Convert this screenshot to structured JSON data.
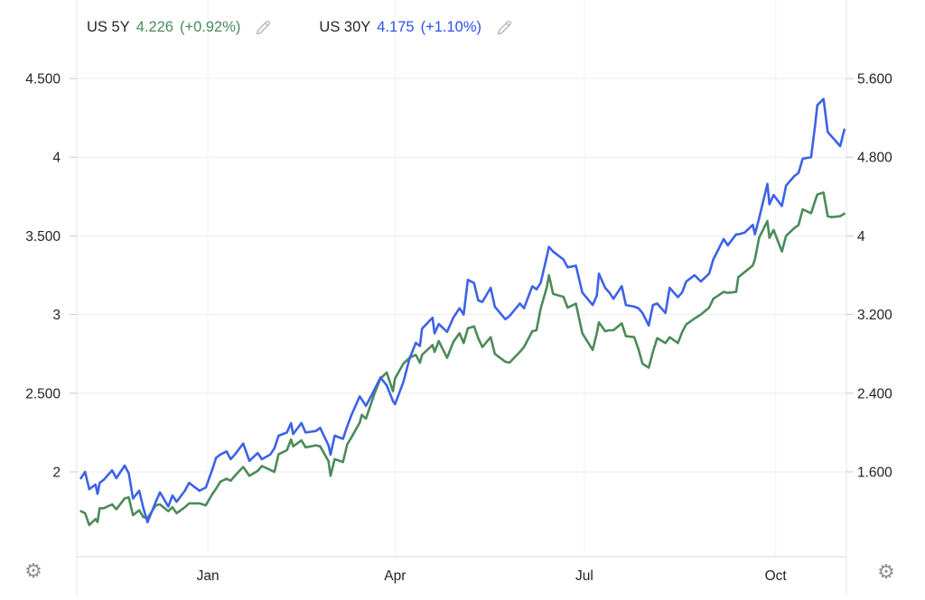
{
  "legend": [
    {
      "name": "US 5Y",
      "value": "4.226",
      "change": "(+0.92%)",
      "color": "#4A8A5F"
    },
    {
      "name": "US 30Y",
      "value": "4.175",
      "change": "(+1.10%)",
      "color": "#2D50EE"
    }
  ],
  "icons": {
    "settings_glyph": "⚙",
    "edit_icon": "pencil",
    "settings_icon": "gear"
  },
  "axis_text_color": "#1f2124",
  "chart_data": {
    "type": "line",
    "x_range": [
      "2021-10-30",
      "2022-11-04"
    ],
    "x_ticks": [
      {
        "label": "Jan",
        "date": "2022-01-01"
      },
      {
        "label": "Apr",
        "date": "2022-04-01"
      },
      {
        "label": "Jul",
        "date": "2022-07-01"
      },
      {
        "label": "Oct",
        "date": "2022-10-01"
      }
    ],
    "left_axis": {
      "series": "US 30Y",
      "min": 2.0,
      "max": 4.5,
      "ticks": [
        {
          "label": "4.500",
          "value": 4.5
        },
        {
          "label": "4",
          "value": 4.0
        },
        {
          "label": "3.500",
          "value": 3.5
        },
        {
          "label": "3",
          "value": 3.0
        },
        {
          "label": "2.500",
          "value": 2.5
        },
        {
          "label": "2",
          "value": 2.0
        }
      ]
    },
    "right_axis": {
      "series": "US 5Y",
      "min": 1.6,
      "max": 5.6,
      "ticks": [
        {
          "label": "5.600",
          "value": 5.6
        },
        {
          "label": "4.800",
          "value": 4.8
        },
        {
          "label": "4",
          "value": 4.0
        },
        {
          "label": "3.200",
          "value": 3.2
        },
        {
          "label": "2.400",
          "value": 2.4
        },
        {
          "label": "1.600",
          "value": 1.6
        }
      ]
    },
    "series": [
      {
        "name": "US 5Y",
        "axis": "right",
        "color": "#4C8A5A",
        "col": 2
      },
      {
        "name": "US 30Y",
        "axis": "left",
        "color": "#3D62E6",
        "col": 1
      }
    ],
    "columns": [
      "date",
      "US 30Y",
      "US 5Y"
    ],
    "points": [
      [
        "2021-11-01",
        1.96,
        1.2
      ],
      [
        "2021-11-03",
        2.0,
        1.18
      ],
      [
        "2021-11-05",
        1.89,
        1.06
      ],
      [
        "2021-11-08",
        1.92,
        1.12
      ],
      [
        "2021-11-09",
        1.86,
        1.09
      ],
      [
        "2021-11-10",
        1.93,
        1.23
      ],
      [
        "2021-11-12",
        1.95,
        1.23
      ],
      [
        "2021-11-16",
        2.01,
        1.27
      ],
      [
        "2021-11-18",
        1.96,
        1.22
      ],
      [
        "2021-11-22",
        2.04,
        1.33
      ],
      [
        "2021-11-24",
        1.99,
        1.34
      ],
      [
        "2021-11-26",
        1.83,
        1.16
      ],
      [
        "2021-11-29",
        1.88,
        1.21
      ],
      [
        "2021-12-01",
        1.77,
        1.14
      ],
      [
        "2021-12-03",
        1.68,
        1.13
      ],
      [
        "2021-12-07",
        1.81,
        1.26
      ],
      [
        "2021-12-09",
        1.87,
        1.27
      ],
      [
        "2021-12-13",
        1.78,
        1.2
      ],
      [
        "2021-12-15",
        1.85,
        1.24
      ],
      [
        "2021-12-17",
        1.81,
        1.18
      ],
      [
        "2021-12-21",
        1.88,
        1.24
      ],
      [
        "2021-12-23",
        1.93,
        1.28
      ],
      [
        "2021-12-28",
        1.88,
        1.28
      ],
      [
        "2021-12-31",
        1.9,
        1.26
      ],
      [
        "2022-01-03",
        2.01,
        1.37
      ],
      [
        "2022-01-05",
        2.09,
        1.43
      ],
      [
        "2022-01-07",
        2.11,
        1.5
      ],
      [
        "2022-01-10",
        2.13,
        1.53
      ],
      [
        "2022-01-12",
        2.08,
        1.51
      ],
      [
        "2022-01-14",
        2.11,
        1.56
      ],
      [
        "2022-01-18",
        2.18,
        1.65
      ],
      [
        "2022-01-21",
        2.07,
        1.56
      ],
      [
        "2022-01-25",
        2.12,
        1.61
      ],
      [
        "2022-01-27",
        2.08,
        1.66
      ],
      [
        "2022-01-31",
        2.11,
        1.62
      ],
      [
        "2022-02-02",
        2.15,
        1.6
      ],
      [
        "2022-02-04",
        2.23,
        1.78
      ],
      [
        "2022-02-08",
        2.25,
        1.82
      ],
      [
        "2022-02-10",
        2.31,
        1.93
      ],
      [
        "2022-02-11",
        2.24,
        1.86
      ],
      [
        "2022-02-15",
        2.31,
        1.92
      ],
      [
        "2022-02-17",
        2.25,
        1.85
      ],
      [
        "2022-02-22",
        2.26,
        1.87
      ],
      [
        "2022-02-24",
        2.28,
        1.86
      ],
      [
        "2022-02-28",
        2.17,
        1.71
      ],
      [
        "2022-03-01",
        2.11,
        1.56
      ],
      [
        "2022-03-03",
        2.23,
        1.73
      ],
      [
        "2022-03-07",
        2.21,
        1.7
      ],
      [
        "2022-03-09",
        2.29,
        1.88
      ],
      [
        "2022-03-11",
        2.36,
        1.95
      ],
      [
        "2022-03-15",
        2.48,
        2.1
      ],
      [
        "2022-03-16",
        2.46,
        2.18
      ],
      [
        "2022-03-18",
        2.42,
        2.14
      ],
      [
        "2022-03-22",
        2.52,
        2.39
      ],
      [
        "2022-03-25",
        2.6,
        2.55
      ],
      [
        "2022-03-28",
        2.55,
        2.61
      ],
      [
        "2022-03-31",
        2.45,
        2.42
      ],
      [
        "2022-04-01",
        2.43,
        2.55
      ],
      [
        "2022-04-05",
        2.57,
        2.7
      ],
      [
        "2022-04-08",
        2.72,
        2.76
      ],
      [
        "2022-04-11",
        2.82,
        2.79
      ],
      [
        "2022-04-13",
        2.8,
        2.71
      ],
      [
        "2022-04-14",
        2.91,
        2.79
      ],
      [
        "2022-04-19",
        2.98,
        2.89
      ],
      [
        "2022-04-20",
        2.88,
        2.82
      ],
      [
        "2022-04-22",
        2.94,
        2.93
      ],
      [
        "2022-04-26",
        2.89,
        2.76
      ],
      [
        "2022-04-29",
        2.98,
        2.92
      ],
      [
        "2022-05-02",
        3.04,
        3.01
      ],
      [
        "2022-05-04",
        3.0,
        2.91
      ],
      [
        "2022-05-06",
        3.22,
        3.06
      ],
      [
        "2022-05-09",
        3.2,
        3.08
      ],
      [
        "2022-05-11",
        3.09,
        2.96
      ],
      [
        "2022-05-13",
        3.08,
        2.87
      ],
      [
        "2022-05-17",
        3.17,
        2.97
      ],
      [
        "2022-05-19",
        3.05,
        2.8
      ],
      [
        "2022-05-24",
        2.97,
        2.72
      ],
      [
        "2022-05-26",
        2.99,
        2.71
      ],
      [
        "2022-05-31",
        3.07,
        2.82
      ],
      [
        "2022-06-02",
        3.04,
        2.87
      ],
      [
        "2022-06-06",
        3.18,
        3.03
      ],
      [
        "2022-06-08",
        3.16,
        3.04
      ],
      [
        "2022-06-10",
        3.2,
        3.26
      ],
      [
        "2022-06-13",
        3.37,
        3.48
      ],
      [
        "2022-06-14",
        3.43,
        3.6
      ],
      [
        "2022-06-16",
        3.4,
        3.41
      ],
      [
        "2022-06-21",
        3.35,
        3.38
      ],
      [
        "2022-06-23",
        3.3,
        3.27
      ],
      [
        "2022-06-27",
        3.31,
        3.31
      ],
      [
        "2022-06-30",
        3.14,
        3.01
      ],
      [
        "2022-07-05",
        3.06,
        2.84
      ],
      [
        "2022-07-07",
        3.12,
        3.01
      ],
      [
        "2022-07-08",
        3.26,
        3.12
      ],
      [
        "2022-07-11",
        3.17,
        3.03
      ],
      [
        "2022-07-13",
        3.14,
        3.04
      ],
      [
        "2022-07-15",
        3.1,
        3.04
      ],
      [
        "2022-07-19",
        3.18,
        3.11
      ],
      [
        "2022-07-21",
        3.06,
        2.98
      ],
      [
        "2022-07-25",
        3.05,
        2.97
      ],
      [
        "2022-07-27",
        3.04,
        2.85
      ],
      [
        "2022-07-29",
        3.01,
        2.7
      ],
      [
        "2022-08-01",
        2.93,
        2.66
      ],
      [
        "2022-08-03",
        3.06,
        2.82
      ],
      [
        "2022-08-05",
        3.07,
        2.96
      ],
      [
        "2022-08-09",
        3.01,
        2.91
      ],
      [
        "2022-08-11",
        3.17,
        2.97
      ],
      [
        "2022-08-15",
        3.11,
        2.91
      ],
      [
        "2022-08-17",
        3.14,
        3.02
      ],
      [
        "2022-08-19",
        3.21,
        3.1
      ],
      [
        "2022-08-23",
        3.25,
        3.16
      ],
      [
        "2022-08-26",
        3.21,
        3.2
      ],
      [
        "2022-08-30",
        3.26,
        3.27
      ],
      [
        "2022-09-01",
        3.35,
        3.36
      ],
      [
        "2022-09-06",
        3.48,
        3.43
      ],
      [
        "2022-09-08",
        3.44,
        3.42
      ],
      [
        "2022-09-12",
        3.51,
        3.43
      ],
      [
        "2022-09-13",
        3.51,
        3.58
      ],
      [
        "2022-09-16",
        3.52,
        3.63
      ],
      [
        "2022-09-20",
        3.57,
        3.7
      ],
      [
        "2022-09-21",
        3.51,
        3.76
      ],
      [
        "2022-09-23",
        3.61,
        3.98
      ],
      [
        "2022-09-27",
        3.83,
        4.15
      ],
      [
        "2022-09-28",
        3.7,
        3.98
      ],
      [
        "2022-09-30",
        3.76,
        4.06
      ],
      [
        "2022-10-04",
        3.69,
        3.84
      ],
      [
        "2022-10-06",
        3.82,
        4.0
      ],
      [
        "2022-10-10",
        3.88,
        4.08
      ],
      [
        "2022-10-12",
        3.9,
        4.11
      ],
      [
        "2022-10-14",
        3.99,
        4.27
      ],
      [
        "2022-10-18",
        4.0,
        4.23
      ],
      [
        "2022-10-20",
        4.21,
        4.36
      ],
      [
        "2022-10-21",
        4.33,
        4.42
      ],
      [
        "2022-10-24",
        4.37,
        4.44
      ],
      [
        "2022-10-26",
        4.16,
        4.2
      ],
      [
        "2022-10-28",
        4.13,
        4.19
      ],
      [
        "2022-11-01",
        4.07,
        4.2
      ],
      [
        "2022-11-03",
        4.175,
        4.226
      ]
    ]
  }
}
